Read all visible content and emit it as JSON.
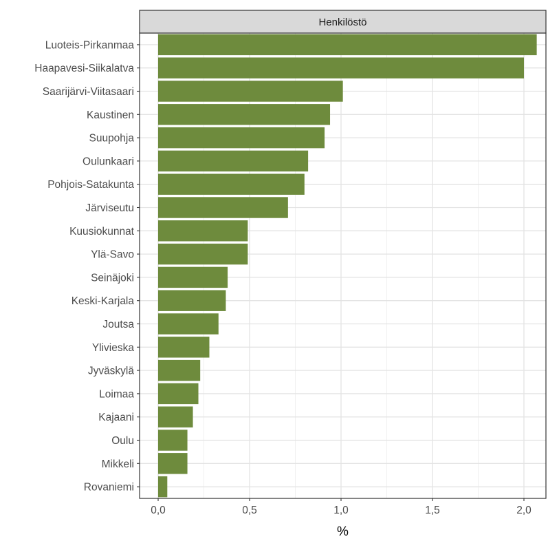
{
  "chart_data": {
    "type": "bar",
    "orientation": "horizontal",
    "facet_label": "Henkilöstö",
    "xlabel": "%",
    "ylabel": "",
    "xlim": [
      -0.1,
      2.1
    ],
    "x_ticks": [
      0,
      0.5,
      1.0,
      1.5,
      2.0
    ],
    "x_tick_labels": [
      "0,0",
      "0,5",
      "1,0",
      "1,5",
      "2,0"
    ],
    "grid": true,
    "bar_color": "#6e8b3d",
    "categories": [
      "Luoteis-Pirkanmaa",
      "Haapavesi-Siikalatva",
      "Saarijärvi-Viitasaari",
      "Kaustinen",
      "Suupohja",
      "Oulunkaari",
      "Pohjois-Satakunta",
      "Järviseutu",
      "Kuusiokunnat",
      "Ylä-Savo",
      "Seinäjoki",
      "Keski-Karjala",
      "Joutsa",
      "Ylivieska",
      "Jyväskylä",
      "Loimaa",
      "Kajaani",
      "Oulu",
      "Mikkeli",
      "Rovaniemi"
    ],
    "values": [
      2.07,
      2.0,
      1.01,
      0.94,
      0.91,
      0.82,
      0.8,
      0.71,
      0.49,
      0.49,
      0.38,
      0.37,
      0.33,
      0.28,
      0.23,
      0.22,
      0.19,
      0.16,
      0.16,
      0.05
    ]
  }
}
